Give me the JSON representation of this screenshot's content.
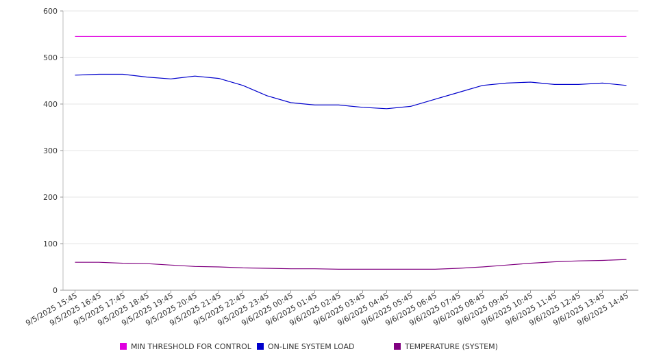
{
  "chart_data": {
    "type": "line",
    "title": "",
    "xlabel": "",
    "ylabel": "",
    "ylim": [
      0,
      600
    ],
    "y_ticks": [
      0,
      100,
      200,
      300,
      400,
      500,
      600
    ],
    "grid": "horizontal",
    "legend_position": "bottom",
    "x_tick_labels": [
      "9/5/2025 15:45",
      "9/5/2025 16:45",
      "9/5/2025 17:45",
      "9/5/2025 18:45",
      "9/5/2025 19:45",
      "9/5/2025 20:45",
      "9/5/2025 21:45",
      "9/5/2025 22:45",
      "9/5/2025 23:45",
      "9/6/2025 00:45",
      "9/6/2025 01:45",
      "9/6/2025 02:45",
      "9/6/2025 03:45",
      "9/6/2025 04:45",
      "9/6/2025 05:45",
      "9/6/2025 06:45",
      "9/6/2025 07:45",
      "9/6/2025 08:45",
      "9/6/2025 09:45",
      "9/6/2025 10:45",
      "9/6/2025 11:45",
      "9/6/2025 12:45",
      "9/6/2025 13:45",
      "9/6/2025 14:45"
    ],
    "series": [
      {
        "name": "MIN THRESHOLD FOR CONTROL",
        "color": "#e000e0",
        "values": [
          545,
          545,
          545,
          545,
          545,
          545,
          545,
          545,
          545,
          545,
          545,
          545,
          545,
          545,
          545,
          545,
          545,
          545,
          545,
          545,
          545,
          545,
          545,
          545
        ]
      },
      {
        "name": "ON-LINE SYSTEM LOAD",
        "color": "#0000cc",
        "values": [
          462,
          464,
          464,
          458,
          454,
          460,
          455,
          440,
          418,
          403,
          398,
          398,
          393,
          390,
          395,
          410,
          425,
          440,
          445,
          447,
          442,
          442,
          445,
          440
        ]
      },
      {
        "name": "TEMPERATURE (SYSTEM)",
        "color": "#800080",
        "values": [
          60,
          60,
          58,
          57,
          54,
          51,
          50,
          48,
          47,
          46,
          46,
          45,
          45,
          45,
          45,
          45,
          47,
          50,
          54,
          58,
          61,
          63,
          64,
          66
        ]
      }
    ]
  }
}
